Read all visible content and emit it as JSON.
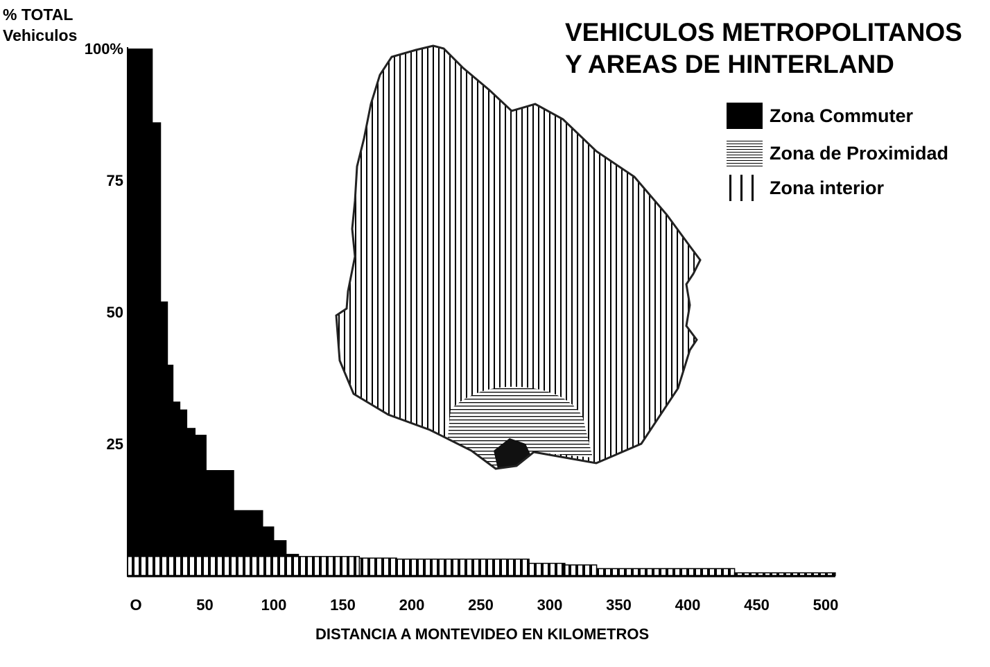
{
  "chart_data": {
    "type": "bar",
    "title": [
      "VEHICULOS METROPOLITANOS",
      "Y AREAS DE HINTERLAND"
    ],
    "ylabel": [
      "% TOTAL",
      "Vehiculos"
    ],
    "xlabel": "DISTANCIA A MONTEVIDEO EN KILOMETROS",
    "ylim": [
      0,
      100
    ],
    "xlim": [
      0,
      510
    ],
    "y_ticks": [
      {
        "v": 100,
        "label": "100%"
      },
      {
        "v": 75,
        "label": "75"
      },
      {
        "v": 50,
        "label": "50"
      },
      {
        "v": 25,
        "label": "25"
      }
    ],
    "x_ticks": [
      {
        "v": 0,
        "label": "O"
      },
      {
        "v": 50,
        "label": "50"
      },
      {
        "v": 100,
        "label": "100"
      },
      {
        "v": 150,
        "label": "150"
      },
      {
        "v": 200,
        "label": "200"
      },
      {
        "v": 250,
        "label": "250"
      },
      {
        "v": 300,
        "label": "300"
      },
      {
        "v": 350,
        "label": "350"
      },
      {
        "v": 400,
        "label": "400"
      },
      {
        "v": 450,
        "label": "450"
      },
      {
        "v": 500,
        "label": "500"
      }
    ],
    "legend_placement": "top-right",
    "series": [
      {
        "name": "Zona Commuter",
        "pattern": "solid",
        "bins": [
          [
            0,
            18,
            100
          ],
          [
            18,
            24,
            86
          ],
          [
            24,
            29,
            52
          ],
          [
            29,
            33,
            40
          ],
          [
            33,
            38,
            33
          ],
          [
            38,
            43,
            31.5
          ],
          [
            43,
            49,
            28
          ],
          [
            49,
            57,
            26.7
          ],
          [
            57,
            77,
            20
          ],
          [
            77,
            98,
            12.4
          ],
          [
            98,
            106,
            9.3
          ],
          [
            106,
            115,
            6.7
          ],
          [
            115,
            124,
            4.1
          ]
        ]
      },
      {
        "name": "Zona de Proximidad",
        "pattern": "horizontal-lines",
        "bins": []
      },
      {
        "name": "Zona interior",
        "pattern": "vertical-lines",
        "bins": [
          [
            0,
            168,
            3.6
          ],
          [
            168,
            195,
            3.3
          ],
          [
            195,
            291,
            3.1
          ],
          [
            291,
            317,
            2.3
          ],
          [
            317,
            340,
            2.0
          ],
          [
            340,
            440,
            1.3
          ],
          [
            440,
            513,
            0.5
          ]
        ]
      }
    ]
  },
  "colors": {
    "ink": "#000000",
    "paper": "#ffffff"
  }
}
